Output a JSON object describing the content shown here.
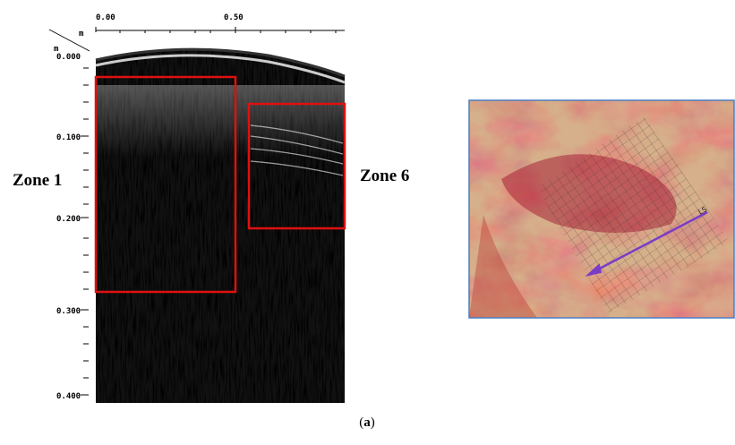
{
  "radargram": {
    "top_axis": {
      "unit": "m",
      "labels": [
        "0.00",
        "0.50"
      ]
    },
    "left_axis": {
      "unit": "m",
      "labels": [
        "0.000",
        "0.100",
        "0.200",
        "0.300",
        "0.400"
      ]
    },
    "zones": [
      "Zone 1",
      "Zone 6"
    ]
  },
  "photo": {
    "label": "LS"
  },
  "caption": "(a)"
}
